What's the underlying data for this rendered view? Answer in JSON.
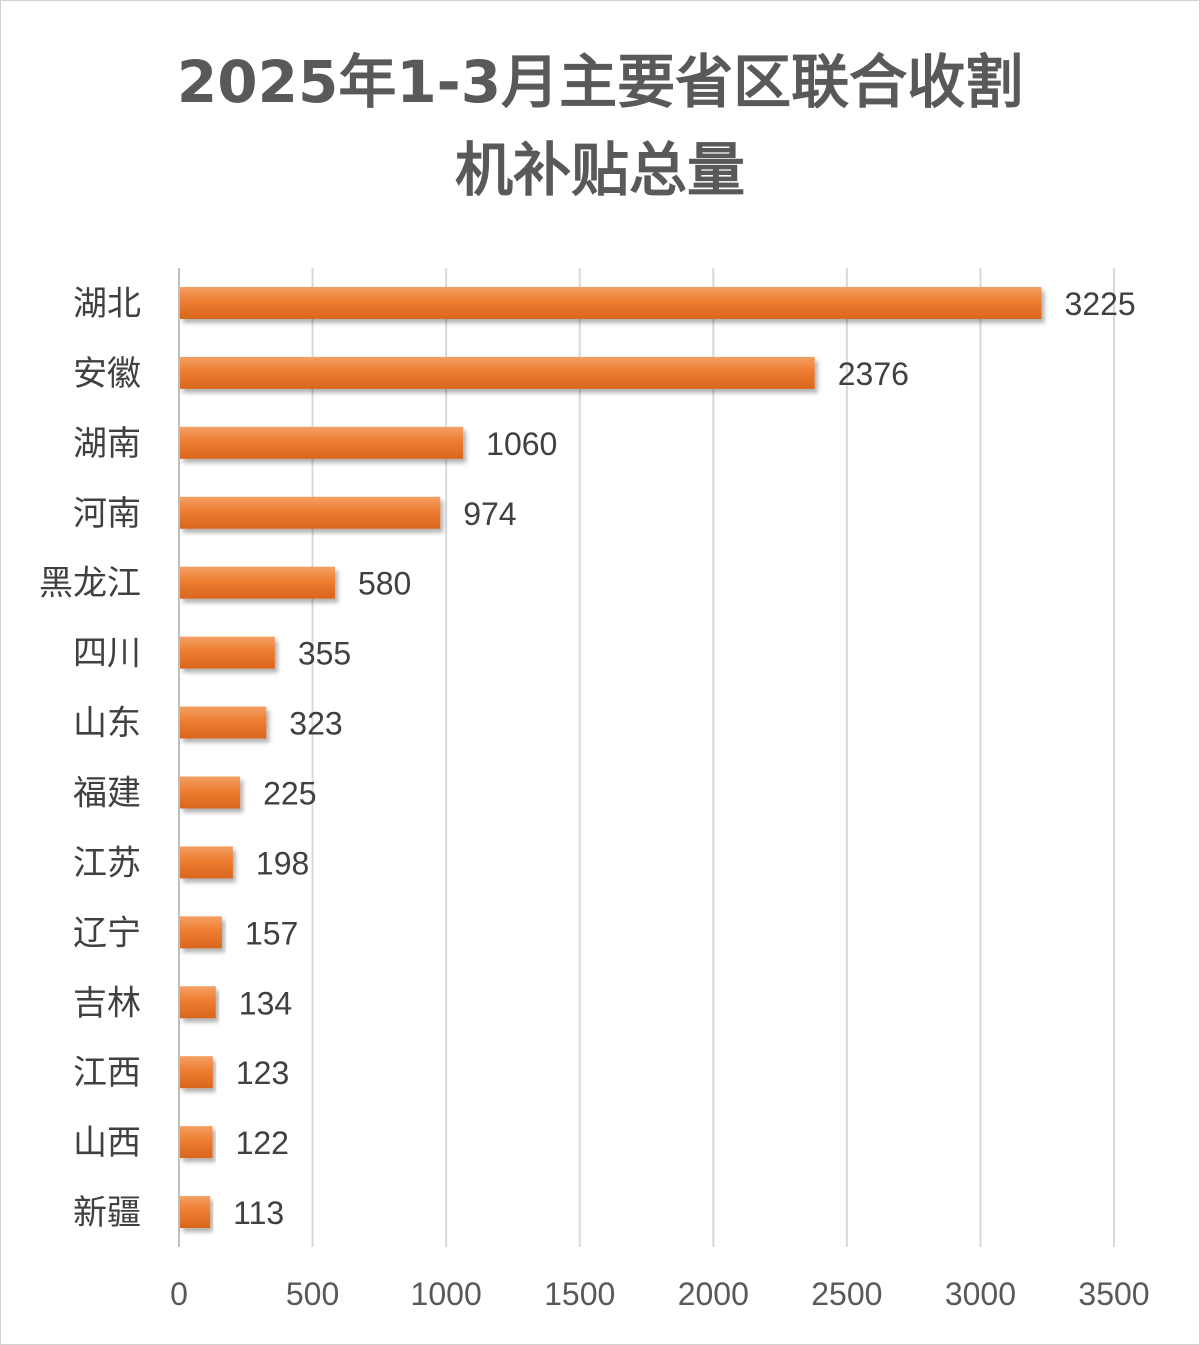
{
  "chart_data": {
    "type": "bar",
    "orientation": "horizontal",
    "title_lines": [
      "2025年1-3月主要省区联合收割",
      "机补贴总量"
    ],
    "categories": [
      "湖北",
      "安徽",
      "湖南",
      "河南",
      "黑龙江",
      "四川",
      "山东",
      "福建",
      "江苏",
      "辽宁",
      "吉林",
      "江西",
      "山西",
      "新疆"
    ],
    "values": [
      3225,
      2376,
      1060,
      974,
      580,
      355,
      323,
      225,
      198,
      157,
      134,
      123,
      122,
      113
    ],
    "xlim": [
      0,
      3500
    ],
    "xticks": [
      0,
      500,
      1000,
      1500,
      2000,
      2500,
      3000,
      3500
    ],
    "grid": "vertical",
    "legend": "none",
    "bar_color": "#ED7D31",
    "data_labels": true
  }
}
